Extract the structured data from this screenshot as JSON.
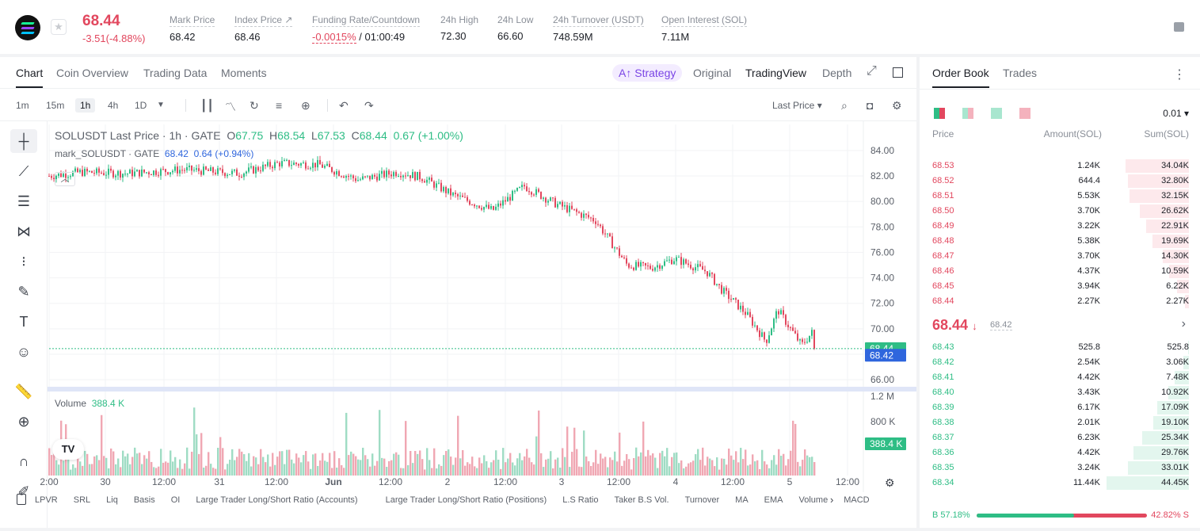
{
  "header": {
    "last_price": "68.44",
    "change": "-3.51(-4.88%)",
    "stats": [
      {
        "label": "Mark Price",
        "value": "68.42"
      },
      {
        "label": "Index Price ↗",
        "value": "68.46"
      },
      {
        "label": "Funding Rate/Countdown",
        "value": "-0.0015%",
        "value2": " / 01:00:49"
      },
      {
        "label": "24h High",
        "value": "72.30"
      },
      {
        "label": "24h Low",
        "value": "66.60"
      },
      {
        "label": "24h Turnover (USDT)",
        "value": "748.59M"
      },
      {
        "label": "Open Interest (SOL)",
        "value": "7.11M"
      }
    ]
  },
  "tabs": [
    "Chart",
    "Coin Overview",
    "Trading Data",
    "Moments"
  ],
  "views": {
    "strategy": "A↑ Strategy",
    "original": "Original",
    "tradingview": "TradingView",
    "depth": "Depth"
  },
  "timeframes": [
    "1m",
    "15m",
    "1h",
    "4h",
    "1D"
  ],
  "price_select": "Last Price",
  "legend": {
    "line1": "SOLUSDT Last Price · 1h · GATE",
    "o": "O",
    "o_val": "67.75",
    "h": "H",
    "h_val": "68.54",
    "l": "L",
    "l_val": "67.53",
    "c": "C",
    "c_val": "68.44",
    "chg": "0.67 (+1.00%)",
    "line2": "mark_SOLUSDT · GATE",
    "mark_val": "68.42",
    "mark_chg": "0.64 (+0.94%)",
    "volume_label": "Volume",
    "volume_val": "388.4 K",
    "last_tag": "68.44",
    "mark_tag": "68.42",
    "vol_tag": "388.4 K",
    "tv": "TV"
  },
  "price_axis": [
    "84.00",
    "82.00",
    "80.00",
    "78.00",
    "76.00",
    "74.00",
    "72.00",
    "70.00",
    "68.00",
    "66.00"
  ],
  "volume_axis": [
    "1.2 M",
    "800 K"
  ],
  "time_axis": [
    "2:00",
    "30",
    "12:00",
    "31",
    "12:00",
    "Jun",
    "12:00",
    "2",
    "12:00",
    "3",
    "12:00",
    "4",
    "12:00",
    "5",
    "12:00"
  ],
  "indicators": [
    "LPVR",
    "SRL",
    "Liq",
    "Basis",
    "OI",
    "Large Trader Long/Short Ratio (Accounts)",
    "Large Trader Long/Short Ratio (Positions)",
    "L.S Ratio",
    "Taker B.S Vol.",
    "Turnover",
    "MA",
    "EMA",
    "Volume",
    "MACD"
  ],
  "orderbook": {
    "tabs": [
      "Order Book",
      "Trades"
    ],
    "precision": "0.01",
    "cols": [
      "Price",
      "Amount(SOL)",
      "Sum(SOL)"
    ],
    "asks": [
      [
        "68.53",
        "1.24K",
        "34.04K"
      ],
      [
        "68.52",
        "644.4",
        "32.80K"
      ],
      [
        "68.51",
        "5.53K",
        "32.15K"
      ],
      [
        "68.50",
        "3.70K",
        "26.62K"
      ],
      [
        "68.49",
        "3.22K",
        "22.91K"
      ],
      [
        "68.48",
        "5.38K",
        "19.69K"
      ],
      [
        "68.47",
        "3.70K",
        "14.30K"
      ],
      [
        "68.46",
        "4.37K",
        "10.59K"
      ],
      [
        "68.45",
        "3.94K",
        "6.22K"
      ],
      [
        "68.44",
        "2.27K",
        "2.27K"
      ]
    ],
    "mid": "68.44",
    "mid_arrow": "↓",
    "mid_mark": "68.42",
    "bids": [
      [
        "68.43",
        "525.8",
        "525.8"
      ],
      [
        "68.42",
        "2.54K",
        "3.06K"
      ],
      [
        "68.41",
        "4.42K",
        "7.48K"
      ],
      [
        "68.40",
        "3.43K",
        "10.92K"
      ],
      [
        "68.39",
        "6.17K",
        "17.09K"
      ],
      [
        "68.38",
        "2.01K",
        "19.10K"
      ],
      [
        "68.37",
        "6.23K",
        "25.34K"
      ],
      [
        "68.36",
        "4.42K",
        "29.76K"
      ],
      [
        "68.35",
        "3.24K",
        "33.01K"
      ],
      [
        "68.34",
        "11.44K",
        "44.45K"
      ]
    ],
    "buy_pct": "B 57.18%",
    "sell_pct": "42.82% S",
    "buy_ratio": 0.5718
  },
  "colors": {
    "up": "#2ebd85",
    "down": "#e2475e",
    "mark": "#2f66dd"
  }
}
